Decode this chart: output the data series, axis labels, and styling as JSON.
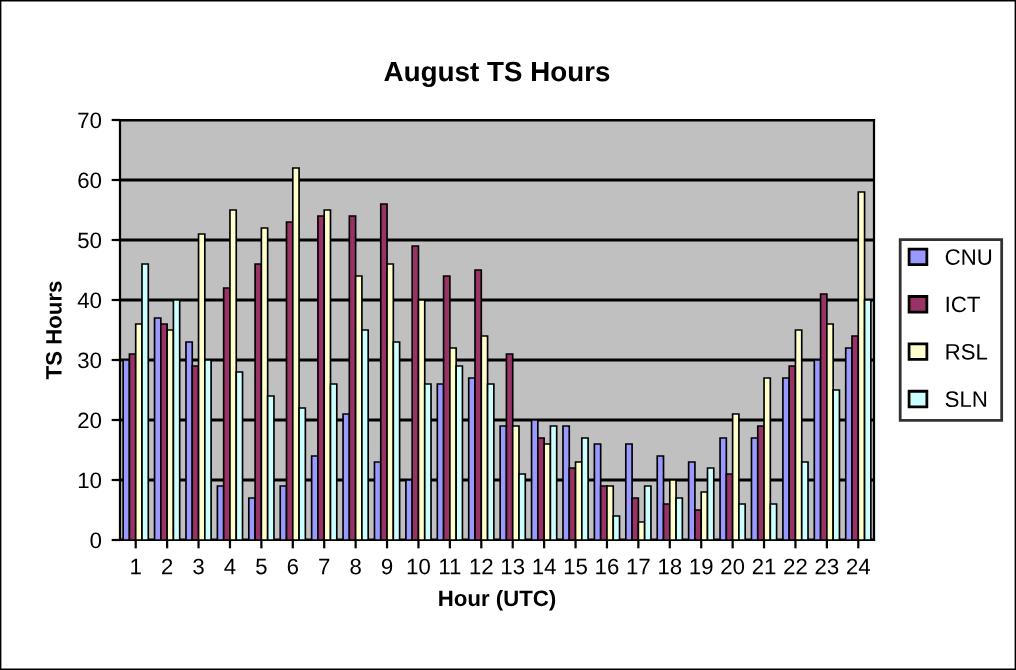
{
  "chart_data": {
    "type": "bar",
    "title": "August TS Hours",
    "xlabel": "Hour (UTC)",
    "ylabel": "TS Hours",
    "categories": [
      "1",
      "2",
      "3",
      "4",
      "5",
      "6",
      "7",
      "8",
      "9",
      "10",
      "11",
      "12",
      "13",
      "14",
      "15",
      "16",
      "17",
      "18",
      "19",
      "20",
      "21",
      "22",
      "23",
      "24"
    ],
    "series": [
      {
        "name": "CNU",
        "color": "#9999ff",
        "values": [
          30,
          37,
          33,
          9,
          7,
          9,
          14,
          21,
          13,
          10,
          26,
          27,
          19,
          20,
          19,
          16,
          16,
          14,
          13,
          17,
          17,
          27,
          30,
          32
        ]
      },
      {
        "name": "ICT",
        "color": "#993366",
        "values": [
          31,
          36,
          29,
          42,
          46,
          53,
          54,
          54,
          56,
          49,
          44,
          45,
          31,
          17,
          12,
          9,
          7,
          6,
          5,
          11,
          19,
          29,
          41,
          34
        ]
      },
      {
        "name": "RSL",
        "color": "#ffffcc",
        "values": [
          36,
          35,
          51,
          55,
          52,
          62,
          55,
          44,
          46,
          40,
          32,
          34,
          19,
          16,
          13,
          9,
          3,
          10,
          8,
          21,
          27,
          35,
          36,
          58
        ]
      },
      {
        "name": "SLN",
        "color": "#ccffff",
        "values": [
          46,
          40,
          30,
          28,
          24,
          22,
          26,
          35,
          33,
          26,
          29,
          26,
          11,
          19,
          17,
          4,
          9,
          7,
          12,
          6,
          6,
          13,
          25,
          40
        ]
      }
    ],
    "ylim": [
      0,
      70
    ],
    "yticks": [
      0,
      10,
      20,
      30,
      40,
      50,
      60,
      70
    ],
    "grid": "y",
    "legend": "right"
  }
}
